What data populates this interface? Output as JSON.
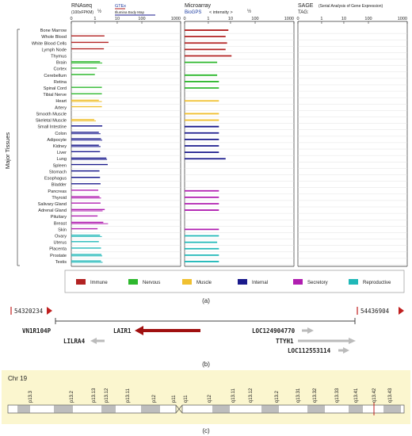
{
  "panel_a": {
    "left_title": "Major Tissues",
    "rnaseq": {
      "title": "RNAseq",
      "unit": "(100xFPKM)",
      "exp": "½",
      "src_label": "GTEx",
      "src_sub": "Illumina Body Map"
    },
    "microarray": {
      "title": "Microarray",
      "src": "BioGPS",
      "note": "< intensity >",
      "exp": "½"
    },
    "sage": {
      "title": "SAGE",
      "desc": "(Serial Analysis of Gene Expression)",
      "tag": "TAG:"
    },
    "ticks": [
      "0",
      "1",
      "10",
      "100",
      "1000"
    ],
    "legend": [
      {
        "label": "Immune",
        "color": "#b22222"
      },
      {
        "label": "Nervous",
        "color": "#2eb82e"
      },
      {
        "label": "Muscle",
        "color": "#f0c030"
      },
      {
        "label": "Internal",
        "color": "#1a1a8c"
      },
      {
        "label": "Secretory",
        "color": "#b01eb0"
      },
      {
        "label": "Reproductive",
        "color": "#20b8b8"
      }
    ],
    "tissues": [
      {
        "name": "Bone Marrow",
        "g": "Immune",
        "r": [
          0,
          0
        ],
        "m": 8
      },
      {
        "name": "Whole Blood",
        "g": "Immune",
        "r": [
          2.4,
          0
        ],
        "m": 6
      },
      {
        "name": "White Blood Cells",
        "g": "Immune",
        "r": [
          4.5,
          0
        ],
        "m": 7
      },
      {
        "name": "Lymph Node",
        "g": "Immune",
        "r": [
          2.2,
          0
        ],
        "m": 6
      },
      {
        "name": "Thymus",
        "g": "Immune",
        "r": [
          0,
          0
        ],
        "m": 11
      },
      {
        "name": "Brain",
        "g": "Nervous",
        "r": [
          1.2,
          1.7
        ],
        "m": 2.5
      },
      {
        "name": "Cortex",
        "g": "Nervous",
        "r": [
          0.7,
          0
        ],
        "m": 0
      },
      {
        "name": "Cerebellum",
        "g": "Nervous",
        "r": [
          0.5,
          0
        ],
        "m": 2.5
      },
      {
        "name": "Retina",
        "g": "Nervous",
        "r": [
          0,
          0
        ],
        "m": 3
      },
      {
        "name": "Spinal Cord",
        "g": "Nervous",
        "r": [
          1.6,
          0
        ],
        "m": 3
      },
      {
        "name": "Tibial Nerve",
        "g": "Nervous",
        "r": [
          1.6,
          0
        ],
        "m": 0
      },
      {
        "name": "Heart",
        "g": "Muscle",
        "r": [
          1.0,
          1.6
        ],
        "m": 3
      },
      {
        "name": "Artery",
        "g": "Muscle",
        "r": [
          1.6,
          0
        ],
        "m": 0
      },
      {
        "name": "Smooth Muscle",
        "g": "Muscle",
        "r": [
          0,
          0
        ],
        "m": 3
      },
      {
        "name": "Skeletal Muscle",
        "g": "Muscle",
        "r": [
          0.45,
          0.6
        ],
        "m": 3
      },
      {
        "name": "Small Intestine",
        "g": "Internal",
        "r": [
          1.7,
          0
        ],
        "m": 3
      },
      {
        "name": "Colon",
        "g": "Internal",
        "r": [
          1.0,
          1.3
        ],
        "m": 3
      },
      {
        "name": "Adipocyte",
        "g": "Internal",
        "r": [
          1.4,
          1.7
        ],
        "m": 3
      },
      {
        "name": "Kidney",
        "g": "Internal",
        "r": [
          1.0,
          1.3
        ],
        "m": 3
      },
      {
        "name": "Liver",
        "g": "Internal",
        "r": [
          1.2,
          0
        ],
        "m": 3
      },
      {
        "name": "Lung",
        "g": "Internal",
        "r": [
          3.2,
          3.6
        ],
        "m": 6
      },
      {
        "name": "Spleen",
        "g": "Internal",
        "r": [
          4.0,
          0
        ],
        "m": 0
      },
      {
        "name": "Stomach",
        "g": "Internal",
        "r": [
          1.1,
          0
        ],
        "m": 0
      },
      {
        "name": "Esophagus",
        "g": "Internal",
        "r": [
          1.2,
          0
        ],
        "m": 0
      },
      {
        "name": "Bladder",
        "g": "Internal",
        "r": [
          1.3,
          0
        ],
        "m": 0
      },
      {
        "name": "Pancreas",
        "g": "Secretory",
        "r": [
          0.9,
          0
        ],
        "m": 3
      },
      {
        "name": "Thyroid",
        "g": "Secretory",
        "r": [
          1.1,
          1.4
        ],
        "m": 3
      },
      {
        "name": "Salivary Gland",
        "g": "Secretory",
        "r": [
          1.3,
          0
        ],
        "m": 3
      },
      {
        "name": "Adrenal Gland",
        "g": "Secretory",
        "r": [
          2.5,
          1.8
        ],
        "m": 3
      },
      {
        "name": "Pituitary",
        "g": "Secretory",
        "r": [
          0.8,
          0
        ],
        "m": 0
      },
      {
        "name": "Breast",
        "g": "Secretory",
        "r": [
          2.0,
          4.2
        ],
        "m": 0
      },
      {
        "name": "Skin",
        "g": "Secretory",
        "r": [
          0.8,
          0
        ],
        "m": 3
      },
      {
        "name": "Ovary",
        "g": "Reproductive",
        "r": [
          1.2,
          1.6
        ],
        "m": 3
      },
      {
        "name": "Uterus",
        "g": "Reproductive",
        "r": [
          1.0,
          0
        ],
        "m": 2.5
      },
      {
        "name": "Placenta",
        "g": "Reproductive",
        "r": [
          1.4,
          0
        ],
        "m": 3
      },
      {
        "name": "Prostate",
        "g": "Reproductive",
        "r": [
          1.5,
          1.7
        ],
        "m": 3
      },
      {
        "name": "Testis",
        "g": "Reproductive",
        "r": [
          1.4,
          1.8
        ],
        "m": 3
      }
    ],
    "caption": "(a)"
  },
  "panel_b": {
    "start": "54320234",
    "end": "54436904",
    "genes": [
      {
        "label": "VN1R104P",
        "strand": "none"
      },
      {
        "label": "LILRA4",
        "strand": "left"
      },
      {
        "label": "LAIR1",
        "strand": "left",
        "highlight": true
      },
      {
        "label": "LOC124904770",
        "strand": "right"
      },
      {
        "label": "TTYH1",
        "strand": "right"
      },
      {
        "label": "LOC112553114",
        "strand": "right"
      }
    ],
    "caption": "(b)"
  },
  "panel_c": {
    "chromosome": "Chr 19",
    "bands": [
      "p13.3",
      "p13.2",
      "p13.13",
      "p13.12",
      "p13.11",
      "p12",
      "p11",
      "q11",
      "q12",
      "q13.11",
      "q13.12",
      "q13.2",
      "q13.31",
      "q13.32",
      "q13.33",
      "q13.41",
      "q13.42",
      "q13.43"
    ],
    "caption": "(c)"
  }
}
